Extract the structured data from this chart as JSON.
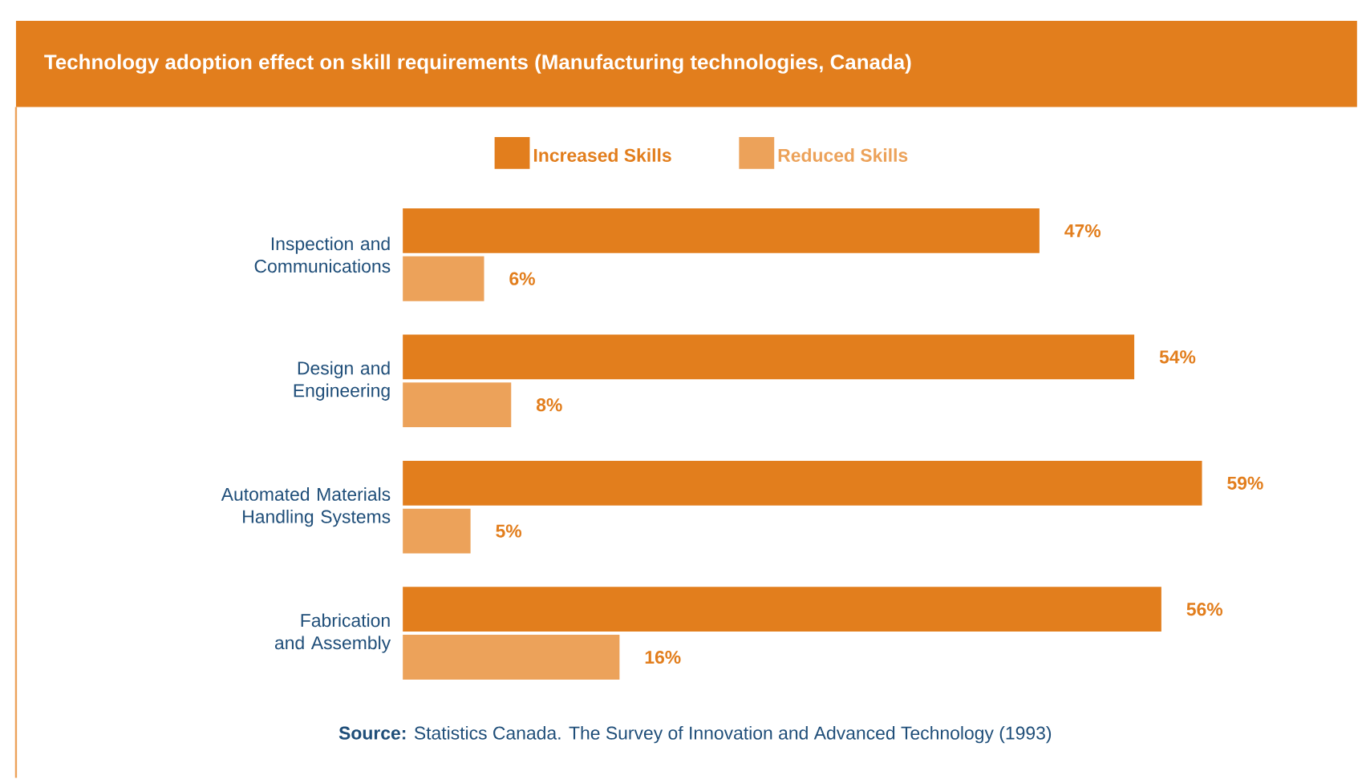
{
  "chart_data": {
    "type": "bar",
    "orientation": "horizontal",
    "title": "Technology adoption effect on skill requirements (Manufacturing technologies, Canada)",
    "categories": [
      "Inspection and Communications",
      "Design and Engineering",
      "Automated Materials Handling Systems",
      "Fabrication and Assembly"
    ],
    "series": [
      {
        "name": "Increased Skills",
        "color": "#e27e1d",
        "values": [
          47,
          54,
          59,
          56
        ],
        "value_labels": [
          "47%",
          "54%",
          "59%",
          "56%"
        ]
      },
      {
        "name": "Reduced Skills",
        "color": "#eca25a",
        "values": [
          6,
          8,
          5,
          16
        ],
        "value_labels": [
          "6%",
          "8%",
          "5%",
          "16%"
        ]
      }
    ],
    "legend": "top",
    "tick_labels": "y",
    "annotations": [
      "**Source:** Statistics Canada. The Survey of Innovation and Advanced Technology (1993)"
    ]
  }
}
